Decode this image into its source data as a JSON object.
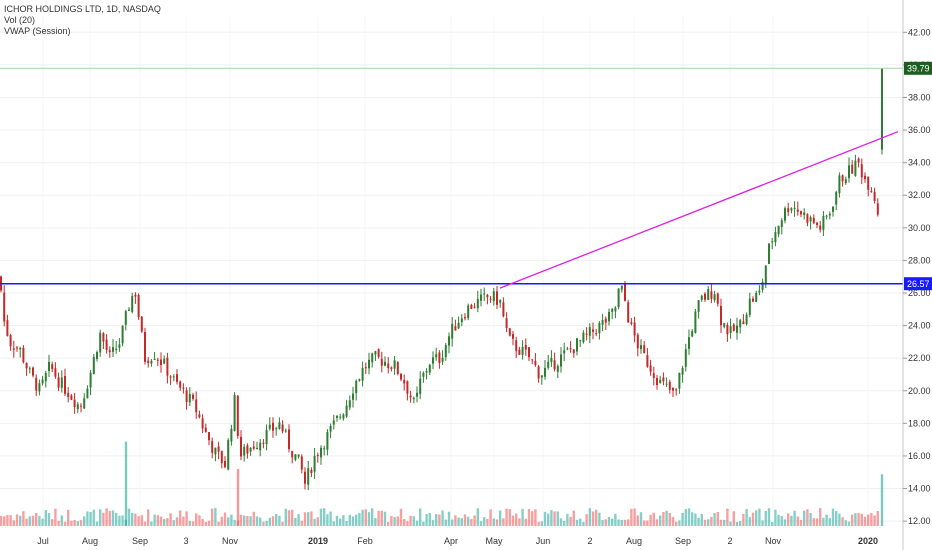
{
  "legend": {
    "title": "ICHOR HOLDINGS LTD, 1D, NASDAQ",
    "vol": "Vol (20)",
    "vwap": "VWAP (Session)"
  },
  "colors": {
    "up": "#26a69a",
    "down": "#ef5350",
    "up_candle": "#2e7d32",
    "down_candle": "#c62828",
    "resistance": "#1a1aff",
    "trendline": "#e11de1",
    "last_price_bg": "#1b5e20",
    "level_bg": "#1a1aff"
  },
  "chart_data": {
    "type": "candlestick",
    "y_axis": {
      "ticks": [
        "42.00",
        "40.00",
        "38.00",
        "36.00",
        "34.00",
        "32.00",
        "30.00",
        "28.00",
        "26.00",
        "24.00",
        "22.00",
        "20.00",
        "18.00",
        "16.00",
        "14.00",
        "12.00"
      ],
      "ylim": [
        11.7,
        43.0
      ]
    },
    "x_axis": {
      "ticks": [
        "Jul",
        "Aug",
        "Sep",
        "3",
        "Nov",
        "2019",
        "Feb",
        "Apr",
        "May",
        "Jun",
        "2",
        "Aug",
        "Sep",
        "2",
        "Nov",
        "2020"
      ]
    },
    "close_path": [
      [
        0,
        27.0
      ],
      [
        3,
        24.5
      ],
      [
        10,
        23.0
      ],
      [
        20,
        22.5
      ],
      [
        30,
        21.0
      ],
      [
        40,
        20.0
      ],
      [
        50,
        21.5
      ],
      [
        60,
        20.5
      ],
      [
        70,
        19.8
      ],
      [
        80,
        19.0
      ],
      [
        90,
        21.0
      ],
      [
        100,
        23.5
      ],
      [
        110,
        22.0
      ],
      [
        120,
        23.0
      ],
      [
        130,
        25.5
      ],
      [
        135,
        26.2
      ],
      [
        140,
        24.0
      ],
      [
        145,
        22.0
      ],
      [
        155,
        22.3
      ],
      [
        165,
        21.5
      ],
      [
        175,
        20.5
      ],
      [
        185,
        19.8
      ],
      [
        195,
        19.0
      ],
      [
        205,
        17.5
      ],
      [
        215,
        16.2
      ],
      [
        225,
        15.5
      ],
      [
        235,
        19.5
      ],
      [
        240,
        16.0
      ],
      [
        250,
        16.5
      ],
      [
        260,
        17.0
      ],
      [
        270,
        17.5
      ],
      [
        280,
        18.0
      ],
      [
        290,
        16.5
      ],
      [
        300,
        15.5
      ],
      [
        305,
        14.3
      ],
      [
        315,
        16.0
      ],
      [
        325,
        17.0
      ],
      [
        335,
        18.0
      ],
      [
        345,
        19.0
      ],
      [
        355,
        20.5
      ],
      [
        365,
        21.5
      ],
      [
        375,
        22.0
      ],
      [
        385,
        21.8
      ],
      [
        395,
        21.5
      ],
      [
        405,
        20.5
      ],
      [
        415,
        19.0
      ],
      [
        420,
        20.5
      ],
      [
        430,
        21.8
      ],
      [
        440,
        22.0
      ],
      [
        450,
        23.5
      ],
      [
        460,
        24.5
      ],
      [
        470,
        25.2
      ],
      [
        480,
        25.5
      ],
      [
        490,
        25.8
      ],
      [
        500,
        25.5
      ],
      [
        505,
        24.0
      ],
      [
        510,
        23.0
      ],
      [
        520,
        22.5
      ],
      [
        530,
        22.0
      ],
      [
        540,
        21.0
      ],
      [
        550,
        21.5
      ],
      [
        560,
        22.0
      ],
      [
        570,
        22.5
      ],
      [
        580,
        23.0
      ],
      [
        590,
        23.5
      ],
      [
        600,
        24.0
      ],
      [
        610,
        24.5
      ],
      [
        615,
        25.0
      ],
      [
        620,
        26.5
      ],
      [
        625,
        25.5
      ],
      [
        630,
        24.0
      ],
      [
        640,
        22.5
      ],
      [
        650,
        21.5
      ],
      [
        660,
        20.5
      ],
      [
        670,
        20.0
      ],
      [
        675,
        19.6
      ],
      [
        680,
        21.0
      ],
      [
        690,
        23.5
      ],
      [
        700,
        25.5
      ],
      [
        710,
        26.0
      ],
      [
        715,
        26.2
      ],
      [
        720,
        24.5
      ],
      [
        730,
        23.5
      ],
      [
        740,
        24.0
      ],
      [
        750,
        25.5
      ],
      [
        760,
        26.0
      ],
      [
        765,
        27.5
      ],
      [
        770,
        29.0
      ],
      [
        780,
        30.5
      ],
      [
        790,
        31.5
      ],
      [
        800,
        31.0
      ],
      [
        810,
        30.5
      ],
      [
        820,
        30.0
      ],
      [
        830,
        31.0
      ],
      [
        840,
        33.0
      ],
      [
        850,
        33.5
      ],
      [
        858,
        34.0
      ],
      [
        865,
        33.0
      ],
      [
        872,
        32.5
      ],
      [
        878,
        31.0
      ],
      [
        880,
        30.5
      ]
    ],
    "last_candle": {
      "open": 34.8,
      "high": 39.79,
      "low": 34.5,
      "close": 39.79
    },
    "volume_spikes": [
      [
        126,
        "up",
        0.62
      ],
      [
        238,
        "down",
        0.42
      ],
      [
        882,
        "up",
        0.38
      ]
    ],
    "resistance_level": 26.57,
    "trendline": {
      "from": [
        500,
        26.3
      ],
      "to": [
        898,
        35.9
      ]
    },
    "last_price_label": "39.79",
    "level_label": "26.57"
  }
}
